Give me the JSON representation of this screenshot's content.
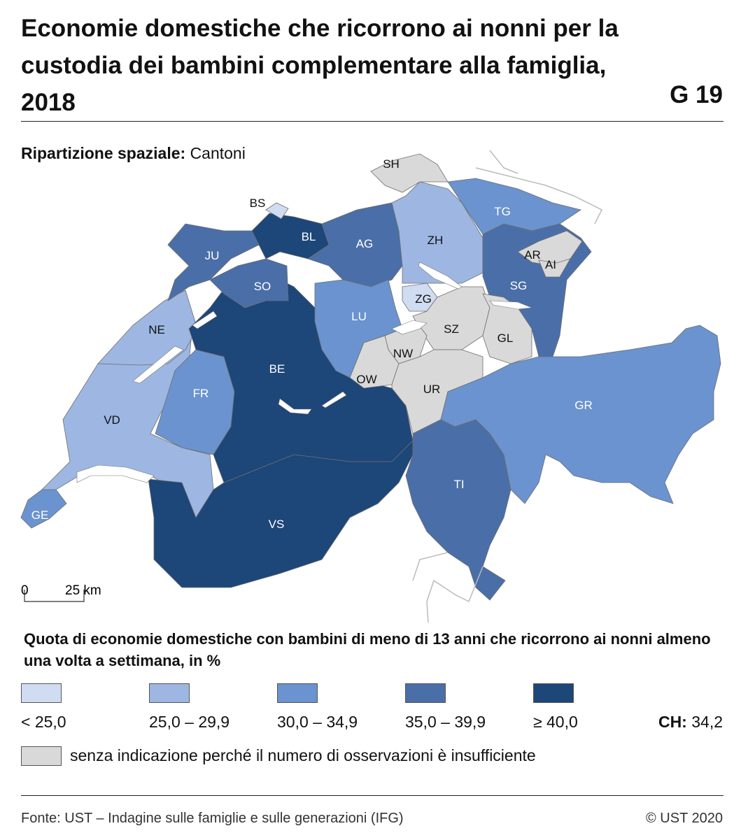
{
  "header": {
    "title": "Economie domestiche che ricorrono ai nonni per la custodia dei bambini complementare alla famiglia, 2018",
    "code": "G 19"
  },
  "subtitle": {
    "label": "Ripartizione spaziale:",
    "value": "Cantoni"
  },
  "map": {
    "regions": [
      {
        "label": "VD",
        "color": "#9db7e2"
      },
      {
        "label": "GE",
        "color": "#6a93cf"
      },
      {
        "label": "NE",
        "color": "#9db7e2"
      },
      {
        "label": "FR",
        "color": "#6a93cf"
      },
      {
        "label": "BE",
        "color": "#1d4679"
      },
      {
        "label": "VS",
        "color": "#1d4679"
      },
      {
        "label": "JU",
        "color": "#4a6ea8"
      },
      {
        "label": "SO",
        "color": "#4a6ea8"
      },
      {
        "label": "BL",
        "color": "#1d4679"
      },
      {
        "label": "BS",
        "color": "#cfdcf2"
      },
      {
        "label": "AG",
        "color": "#4a6ea8"
      },
      {
        "label": "LU",
        "color": "#6a93cf"
      },
      {
        "label": "ZH",
        "color": "#9db7e2"
      },
      {
        "label": "SH",
        "color": "#d9d9d9"
      },
      {
        "label": "TG",
        "color": "#6a93cf"
      },
      {
        "label": "SG",
        "color": "#4a6ea8"
      },
      {
        "label": "AR",
        "color": "#d9d9d9"
      },
      {
        "label": "AI",
        "color": "#d9d9d9"
      },
      {
        "label": "ZG",
        "color": "#cfdcf2"
      },
      {
        "label": "SZ",
        "color": "#d9d9d9"
      },
      {
        "label": "GL",
        "color": "#d9d9d9"
      },
      {
        "label": "NW",
        "color": "#d9d9d9"
      },
      {
        "label": "OW",
        "color": "#d9d9d9"
      },
      {
        "label": "UR",
        "color": "#d9d9d9"
      },
      {
        "label": "GR",
        "color": "#6a93cf"
      },
      {
        "label": "TI",
        "color": "#4a6ea8"
      }
    ],
    "scale": {
      "start": "0",
      "end": "25 km"
    }
  },
  "legend": {
    "title": "Quota di economie domestiche con bambini di meno di 13 anni che ricorrono ai nonni almeno una volta a settimana, in %",
    "classes": [
      {
        "label": "< 25,0",
        "color": "#cfdcf2"
      },
      {
        "label": "25,0 – 29,9",
        "color": "#9db7e2"
      },
      {
        "label": "30,0 – 34,9",
        "color": "#6a93cf"
      },
      {
        "label": "35,0 – 39,9",
        "color": "#4a6ea8"
      },
      {
        "label": "≥ 40,0",
        "color": "#1d4679"
      }
    ],
    "ch": {
      "label": "CH:",
      "value": "34,2"
    },
    "missing": {
      "label": "senza indicazione perché il numero di osservazioni è insufficiente",
      "color": "#d9d9d9"
    }
  },
  "footer": {
    "source": "Fonte: UST – Indagine sulle famiglie e sulle generazioni (IFG)",
    "copyright": "© UST 2020"
  }
}
